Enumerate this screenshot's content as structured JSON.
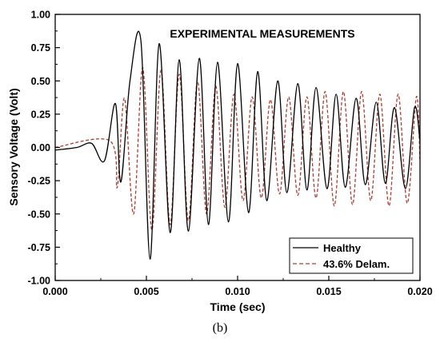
{
  "caption": "(b)",
  "chart_data": {
    "type": "line",
    "title": "EXPERIMENTAL MEASUREMENTS",
    "xlabel": "Time (sec)",
    "ylabel": "Sensory Voltage (Volt)",
    "xlim": [
      0.0,
      0.02
    ],
    "ylim": [
      -1.0,
      1.0
    ],
    "x_ticks": [
      "0.000",
      "0.005",
      "0.010",
      "0.015",
      "0.020"
    ],
    "y_ticks": [
      "1.00",
      "0.75",
      "0.50",
      "0.25",
      "0.00",
      "-0.25",
      "-0.50",
      "-0.75",
      "-1.00"
    ],
    "legend_position": "bottom-right",
    "series": [
      {
        "name": "Healthy",
        "color": "#000000",
        "style": "solid",
        "x": [
          0.0,
          0.0012,
          0.002,
          0.0027,
          0.0033,
          0.0036,
          0.0041,
          0.0047,
          0.0052,
          0.0057,
          0.0063,
          0.0068,
          0.0073,
          0.0079,
          0.0084,
          0.0089,
          0.0095,
          0.01,
          0.0106,
          0.0111,
          0.0116,
          0.0122,
          0.0127,
          0.0133,
          0.0138,
          0.0143,
          0.0149,
          0.0154,
          0.0159,
          0.0165,
          0.017,
          0.0176,
          0.0181,
          0.0186,
          0.0192,
          0.0197,
          0.02
        ],
        "y": [
          -0.02,
          0.0,
          0.03,
          -0.1,
          0.33,
          -0.26,
          0.5,
          0.8,
          -0.84,
          0.78,
          -0.64,
          0.66,
          -0.63,
          0.67,
          -0.58,
          0.64,
          -0.56,
          0.63,
          -0.49,
          0.57,
          -0.4,
          0.5,
          -0.34,
          0.48,
          -0.32,
          0.45,
          -0.31,
          0.4,
          -0.3,
          0.37,
          -0.28,
          0.34,
          -0.27,
          0.3,
          -0.31,
          0.3,
          0.05
        ]
      },
      {
        "name": "43.6% Delam.",
        "color": "#b03a2e",
        "style": "dashed",
        "x": [
          0.0,
          0.003,
          0.0034,
          0.0038,
          0.0043,
          0.0048,
          0.0053,
          0.0058,
          0.0063,
          0.0068,
          0.0073,
          0.0078,
          0.0083,
          0.0088,
          0.0093,
          0.0098,
          0.0103,
          0.0108,
          0.0113,
          0.0118,
          0.0123,
          0.0128,
          0.0133,
          0.0138,
          0.0143,
          0.0148,
          0.0153,
          0.0158,
          0.0163,
          0.0168,
          0.0173,
          0.0178,
          0.0183,
          0.0188,
          0.0193,
          0.0198,
          0.02
        ],
        "y": [
          0.0,
          0.05,
          -0.3,
          0.37,
          -0.5,
          0.6,
          -0.62,
          0.58,
          -0.58,
          0.55,
          -0.55,
          0.5,
          -0.5,
          0.46,
          -0.45,
          0.4,
          -0.4,
          0.38,
          -0.38,
          0.36,
          -0.35,
          0.38,
          -0.36,
          0.38,
          -0.38,
          0.42,
          -0.44,
          0.42,
          -0.43,
          0.42,
          -0.4,
          0.4,
          -0.44,
          0.4,
          -0.42,
          0.38,
          -0.1
        ]
      }
    ]
  }
}
